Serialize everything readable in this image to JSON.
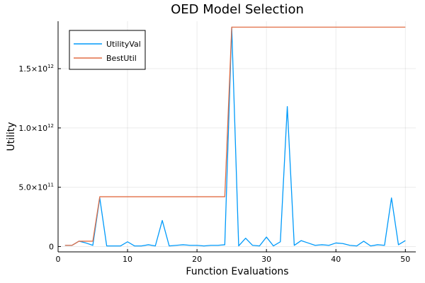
{
  "chart_data": {
    "type": "line",
    "title": "OED Model Selection",
    "xlabel": "Function Evaluations",
    "ylabel": "Utility",
    "xlim": [
      0,
      51.5
    ],
    "ylim": [
      -45000000000.0,
      1900000000000.0
    ],
    "grid": true,
    "legend_position": "top-left",
    "xticks": [
      0,
      10,
      20,
      30,
      40,
      50
    ],
    "xtick_labels": [
      "0",
      "10",
      "20",
      "30",
      "40",
      "50"
    ],
    "yticks": [
      {
        "value": 0,
        "mantissa": "0",
        "exponent": ""
      },
      {
        "value": 500000000000,
        "mantissa": "5.0×10",
        "exponent": "11"
      },
      {
        "value": 1000000000000,
        "mantissa": "1.0×10",
        "exponent": "12"
      },
      {
        "value": 1500000000000,
        "mantissa": "1.5×10",
        "exponent": "12"
      }
    ],
    "x": [
      1,
      2,
      3,
      4,
      5,
      6,
      7,
      8,
      9,
      10,
      11,
      12,
      13,
      14,
      15,
      16,
      17,
      18,
      19,
      20,
      21,
      22,
      23,
      24,
      25,
      26,
      27,
      28,
      29,
      30,
      31,
      32,
      33,
      34,
      35,
      36,
      37,
      38,
      39,
      40,
      41,
      42,
      43,
      44,
      45,
      46,
      47,
      48,
      49,
      50
    ],
    "series": [
      {
        "name": "UtilityVal",
        "color": "#009AFA",
        "values": [
          10000000000.0,
          10000000000.0,
          45000000000.0,
          30000000000.0,
          10000000000.0,
          410000000000.0,
          5000000000.0,
          5000000000.0,
          5000000000.0,
          40000000000.0,
          5000000000.0,
          5000000000.0,
          15000000000.0,
          5000000000.0,
          220000000000.0,
          5000000000.0,
          10000000000.0,
          15000000000.0,
          10000000000.0,
          10000000000.0,
          5000000000.0,
          10000000000.0,
          10000000000.0,
          15000000000.0,
          1850000000000.0,
          5000000000.0,
          70000000000.0,
          10000000000.0,
          5000000000.0,
          80000000000.0,
          5000000000.0,
          40000000000.0,
          1180000000000.0,
          10000000000.0,
          50000000000.0,
          30000000000.0,
          10000000000.0,
          15000000000.0,
          10000000000.0,
          30000000000.0,
          25000000000.0,
          10000000000.0,
          5000000000.0,
          45000000000.0,
          5000000000.0,
          15000000000.0,
          10000000000.0,
          410000000000.0,
          15000000000.0,
          50000000000.0
        ]
      },
      {
        "name": "BestUtil",
        "color": "#E26F46",
        "values": [
          10000000000.0,
          10000000000.0,
          45000000000.0,
          45000000000.0,
          45000000000.0,
          420000000000.0,
          420000000000.0,
          420000000000.0,
          420000000000.0,
          420000000000.0,
          420000000000.0,
          420000000000.0,
          420000000000.0,
          420000000000.0,
          420000000000.0,
          420000000000.0,
          420000000000.0,
          420000000000.0,
          420000000000.0,
          420000000000.0,
          420000000000.0,
          420000000000.0,
          420000000000.0,
          420000000000.0,
          1850000000000.0,
          1850000000000.0,
          1850000000000.0,
          1850000000000.0,
          1850000000000.0,
          1850000000000.0,
          1850000000000.0,
          1850000000000.0,
          1850000000000.0,
          1850000000000.0,
          1850000000000.0,
          1850000000000.0,
          1850000000000.0,
          1850000000000.0,
          1850000000000.0,
          1850000000000.0,
          1850000000000.0,
          1850000000000.0,
          1850000000000.0,
          1850000000000.0,
          1850000000000.0,
          1850000000000.0,
          1850000000000.0,
          1850000000000.0,
          1850000000000.0,
          1850000000000.0
        ]
      }
    ]
  }
}
